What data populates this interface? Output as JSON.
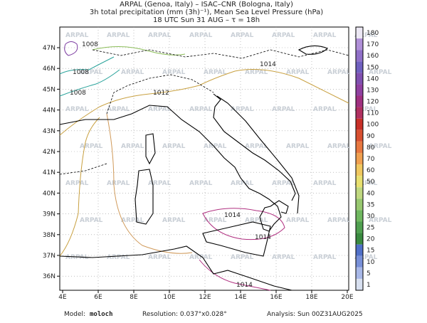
{
  "header": {
    "lines": [
      "ARPAL (Genoa, Italy)  –  ISAC–CNR (Bologna, Italy)",
      "3h total precipitation (mm (3h)⁻¹), Mean Sea Level Pressure (hPa)",
      "18 UTC Sun 31 AUG   –   τ = 18h"
    ]
  },
  "map": {
    "lon_ticks": [
      "4E",
      "6E",
      "8E",
      "10E",
      "12E",
      "14E",
      "16E",
      "18E",
      "20E"
    ],
    "lat_ticks": [
      "47N",
      "46N",
      "45N",
      "44N",
      "43N",
      "42N",
      "41N",
      "40N",
      "39N",
      "38N",
      "37N",
      "36N"
    ],
    "watermark": "ARPAL",
    "isobar_labels": [
      "1008",
      "1008",
      "1008",
      "1012",
      "1014",
      "1014",
      "1014",
      "1014"
    ]
  },
  "colorbar": {
    "levels": [
      180,
      170,
      160,
      150,
      140,
      130,
      120,
      110,
      100,
      90,
      80,
      70,
      60,
      50,
      40,
      35,
      30,
      25,
      20,
      15,
      10,
      5,
      1
    ],
    "colors": [
      "#ece8f4",
      "#b090d8",
      "#9070c8",
      "#7060c0",
      "#8050b0",
      "#9040a0",
      "#a03080",
      "#b03060",
      "#c83028",
      "#d85030",
      "#e87840",
      "#f0a050",
      "#f0c860",
      "#e8e070",
      "#c0d880",
      "#98c870",
      "#70b860",
      "#50a050",
      "#3a8a40",
      "#5070c8",
      "#7890d8",
      "#a8b8e8",
      "#d8e0f0"
    ]
  },
  "footer": {
    "model_label": "Model:",
    "model": "moloch",
    "resolution": "Resolution: 0.037°x0.028°",
    "analysis": "Analysis: Sun 00Z31AUG2025"
  }
}
